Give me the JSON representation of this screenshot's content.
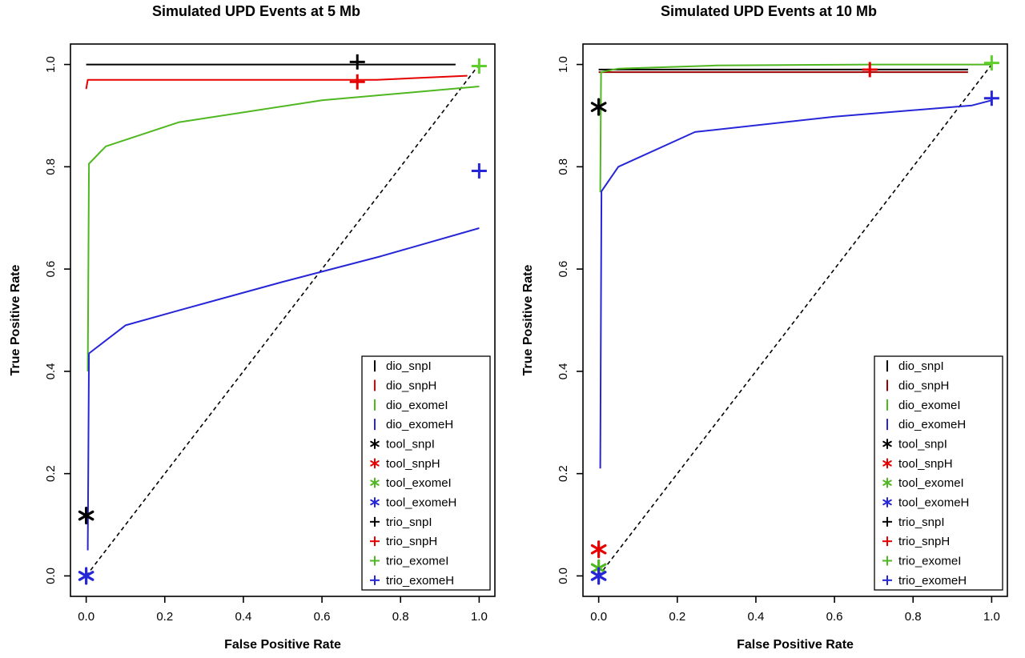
{
  "chart_data": [
    {
      "type": "line",
      "title": "Simulated UPD Events at 5 Mb",
      "xlabel": "False Positive Rate",
      "ylabel": "True Positive Rate",
      "xlim": [
        0,
        1
      ],
      "ylim": [
        0,
        1
      ],
      "grid": false,
      "legend_position": "bottomright",
      "xticks": {
        "values": [
          0,
          0.2,
          0.4,
          0.6,
          0.8,
          1.0
        ],
        "labels": [
          "0.0",
          "0.2",
          "0.4",
          "0.6",
          "0.8",
          "1.0"
        ]
      },
      "yticks": {
        "values": [
          0,
          0.2,
          0.4,
          0.6,
          0.8,
          1.0
        ],
        "labels": [
          "0.0",
          "0.2",
          "0.4",
          "0.6",
          "0.8",
          "1.0"
        ]
      },
      "diagonal": {
        "show": true,
        "style": "dashed",
        "color": "#000000",
        "from": [
          0,
          0
        ],
        "to": [
          1,
          1
        ]
      },
      "series": [
        {
          "name": "dio_snpI",
          "color": "#000000",
          "points": [
            [
              0,
              1.0
            ],
            [
              0.94,
              1.0
            ]
          ]
        },
        {
          "name": "dio_snpH",
          "color": "#e60000",
          "points": [
            [
              0,
              0.952
            ],
            [
              0.004,
              0.97
            ],
            [
              0.74,
              0.97
            ],
            [
              0.97,
              0.978
            ]
          ]
        },
        {
          "name": "dio_exomeI",
          "color": "#4fb820",
          "points": [
            [
              0.004,
              0.4
            ],
            [
              0.007,
              0.806
            ],
            [
              0.05,
              0.84
            ],
            [
              0.235,
              0.887
            ],
            [
              0.6,
              0.93
            ],
            [
              1.0,
              0.957
            ]
          ]
        },
        {
          "name": "dio_exomeH",
          "color": "#2626d8",
          "points": [
            [
              0.004,
              0.05
            ],
            [
              0.007,
              0.435
            ],
            [
              0.1,
              0.49
            ],
            [
              0.24,
              0.52
            ],
            [
              0.5,
              0.575
            ],
            [
              0.75,
              0.625
            ],
            [
              1.0,
              0.68
            ]
          ]
        }
      ],
      "markers": [
        {
          "name": "tool_snpI",
          "marker": "star",
          "color": "#000000",
          "x": 0,
          "y": 0.118
        },
        {
          "name": "tool_exomeH",
          "marker": "star",
          "color": "#2626d8",
          "x": 0,
          "y": 0.0
        },
        {
          "name": "trio_snpI",
          "marker": "plus",
          "color": "#000000",
          "x": 0.69,
          "y": 1.005
        },
        {
          "name": "trio_snpH",
          "marker": "plus",
          "color": "#e60000",
          "x": 0.69,
          "y": 0.966
        },
        {
          "name": "trio_exomeI",
          "marker": "plus",
          "color": "#5ecf2a",
          "x": 1.0,
          "y": 0.997
        },
        {
          "name": "trio_exomeH",
          "marker": "plus",
          "color": "#2626d8",
          "x": 1.0,
          "y": 0.792
        }
      ],
      "legend": {
        "entries": [
          {
            "label": "dio_snpI",
            "marker": "vline",
            "color": "#000000"
          },
          {
            "label": "dio_snpH",
            "marker": "vline",
            "color": "#e60000"
          },
          {
            "label": "dio_exomeI",
            "marker": "vline",
            "color": "#4fb820"
          },
          {
            "label": "dio_exomeH",
            "marker": "vline",
            "color": "#2626d8"
          },
          {
            "label": "tool_snpI",
            "marker": "star",
            "color": "#000000"
          },
          {
            "label": "tool_snpH",
            "marker": "star",
            "color": "#e60000"
          },
          {
            "label": "tool_exomeI",
            "marker": "star",
            "color": "#4fb820"
          },
          {
            "label": "tool_exomeH",
            "marker": "star",
            "color": "#2626d8"
          },
          {
            "label": "trio_snpI",
            "marker": "plus",
            "color": "#000000"
          },
          {
            "label": "trio_snpH",
            "marker": "plus",
            "color": "#e60000"
          },
          {
            "label": "trio_exomeI",
            "marker": "plus",
            "color": "#4fb820"
          },
          {
            "label": "trio_exomeH",
            "marker": "plus",
            "color": "#2626d8"
          }
        ]
      }
    },
    {
      "type": "line",
      "title": "Simulated UPD Events at 10 Mb",
      "xlabel": "False Positive Rate",
      "ylabel": "True Positive Rate",
      "xlim": [
        0,
        1
      ],
      "ylim": [
        0,
        1
      ],
      "grid": false,
      "legend_position": "bottomright",
      "xticks": {
        "values": [
          0,
          0.2,
          0.4,
          0.6,
          0.8,
          1.0
        ],
        "labels": [
          "0.0",
          "0.2",
          "0.4",
          "0.6",
          "0.8",
          "1.0"
        ]
      },
      "yticks": {
        "values": [
          0,
          0.2,
          0.4,
          0.6,
          0.8,
          1.0
        ],
        "labels": [
          "0.0",
          "0.2",
          "0.4",
          "0.6",
          "0.8",
          "1.0"
        ]
      },
      "diagonal": {
        "show": true,
        "style": "dashed",
        "color": "#000000",
        "from": [
          0,
          0
        ],
        "to": [
          1,
          1
        ]
      },
      "series": [
        {
          "name": "dio_snpI",
          "color": "#000000",
          "points": [
            [
              0,
              0.99
            ],
            [
              0.94,
              0.99
            ]
          ]
        },
        {
          "name": "dio_snpH",
          "color": "#9b0000",
          "points": [
            [
              0,
              0.985
            ],
            [
              0.94,
              0.985
            ]
          ]
        },
        {
          "name": "dio_exomeI",
          "color": "#4fb820",
          "points": [
            [
              0.004,
              0.75
            ],
            [
              0.006,
              0.985
            ],
            [
              0.05,
              0.992
            ],
            [
              0.3,
              0.998
            ],
            [
              0.7,
              1.0
            ],
            [
              1.0,
              1.0
            ]
          ]
        },
        {
          "name": "dio_exomeH",
          "color": "#2626d8",
          "points": [
            [
              0.004,
              0.21
            ],
            [
              0.007,
              0.752
            ],
            [
              0.05,
              0.8
            ],
            [
              0.245,
              0.868
            ],
            [
              0.6,
              0.898
            ],
            [
              0.95,
              0.92
            ],
            [
              1.0,
              0.93
            ]
          ]
        }
      ],
      "markers": [
        {
          "name": "tool_snpI",
          "marker": "star",
          "color": "#000000",
          "x": 0,
          "y": 0.917
        },
        {
          "name": "tool_snpH",
          "marker": "star",
          "color": "#e60000",
          "x": 0,
          "y": 0.052
        },
        {
          "name": "tool_exomeI",
          "marker": "star",
          "color": "#4fb820",
          "x": 0,
          "y": 0.015
        },
        {
          "name": "tool_exomeH",
          "marker": "star",
          "color": "#2626d8",
          "x": 0,
          "y": 0.0
        },
        {
          "name": "trio_snpH",
          "marker": "plus",
          "color": "#e60000",
          "x": 0.69,
          "y": 0.99
        },
        {
          "name": "trio_exomeI",
          "marker": "plus",
          "color": "#5ecf2a",
          "x": 1.0,
          "y": 1.003
        },
        {
          "name": "trio_exomeH",
          "marker": "plus",
          "color": "#2626d8",
          "x": 1.0,
          "y": 0.934
        }
      ],
      "legend": {
        "entries": [
          {
            "label": "dio_snpI",
            "marker": "vline",
            "color": "#000000"
          },
          {
            "label": "dio_snpH",
            "marker": "vline",
            "color": "#9b0000"
          },
          {
            "label": "dio_exomeI",
            "marker": "vline",
            "color": "#4fb820"
          },
          {
            "label": "dio_exomeH",
            "marker": "vline",
            "color": "#2626d8"
          },
          {
            "label": "tool_snpI",
            "marker": "star",
            "color": "#000000"
          },
          {
            "label": "tool_snpH",
            "marker": "star",
            "color": "#e60000"
          },
          {
            "label": "tool_exomeI",
            "marker": "star",
            "color": "#4fb820"
          },
          {
            "label": "tool_exomeH",
            "marker": "star",
            "color": "#2626d8"
          },
          {
            "label": "trio_snpI",
            "marker": "plus",
            "color": "#000000"
          },
          {
            "label": "trio_snpH",
            "marker": "plus",
            "color": "#e60000"
          },
          {
            "label": "trio_exomeI",
            "marker": "plus",
            "color": "#4fb820"
          },
          {
            "label": "trio_exomeH",
            "marker": "plus",
            "color": "#2626d8"
          }
        ]
      }
    }
  ]
}
